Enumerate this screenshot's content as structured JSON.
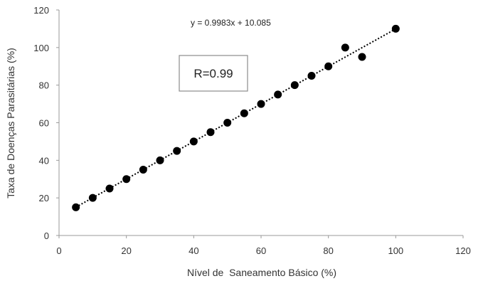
{
  "chart_data": {
    "type": "scatter",
    "xlabel": "Nível de  Saneamento Básico (%)",
    "ylabel": "Taxa de Doenças Parasitárias (%)",
    "xlim": [
      0,
      120
    ],
    "ylim": [
      0,
      120
    ],
    "x_ticks": [
      0,
      20,
      40,
      60,
      80,
      100,
      120
    ],
    "y_ticks": [
      0,
      20,
      40,
      60,
      80,
      100,
      120
    ],
    "grid": false,
    "series": [
      {
        "points": [
          {
            "x": 5,
            "y": 15
          },
          {
            "x": 10,
            "y": 20
          },
          {
            "x": 15,
            "y": 25
          },
          {
            "x": 20,
            "y": 30
          },
          {
            "x": 25,
            "y": 35
          },
          {
            "x": 30,
            "y": 40
          },
          {
            "x": 35,
            "y": 45
          },
          {
            "x": 40,
            "y": 50
          },
          {
            "x": 45,
            "y": 55
          },
          {
            "x": 50,
            "y": 60
          },
          {
            "x": 55,
            "y": 65
          },
          {
            "x": 60,
            "y": 70
          },
          {
            "x": 65,
            "y": 75
          },
          {
            "x": 70,
            "y": 80
          },
          {
            "x": 75,
            "y": 85
          },
          {
            "x": 80,
            "y": 90
          },
          {
            "x": 85,
            "y": 100
          },
          {
            "x": 90,
            "y": 95
          },
          {
            "x": 100,
            "y": 110
          }
        ],
        "color": "#000000"
      }
    ],
    "trendline": {
      "type": "linear",
      "slope": 0.9983,
      "intercept": 10.085,
      "x_range": [
        5,
        100
      ],
      "style": "dotted",
      "color": "#000000"
    },
    "annotations": {
      "equation": "y = 0.9983x + 10.085",
      "r_value": "R=0.99"
    }
  }
}
